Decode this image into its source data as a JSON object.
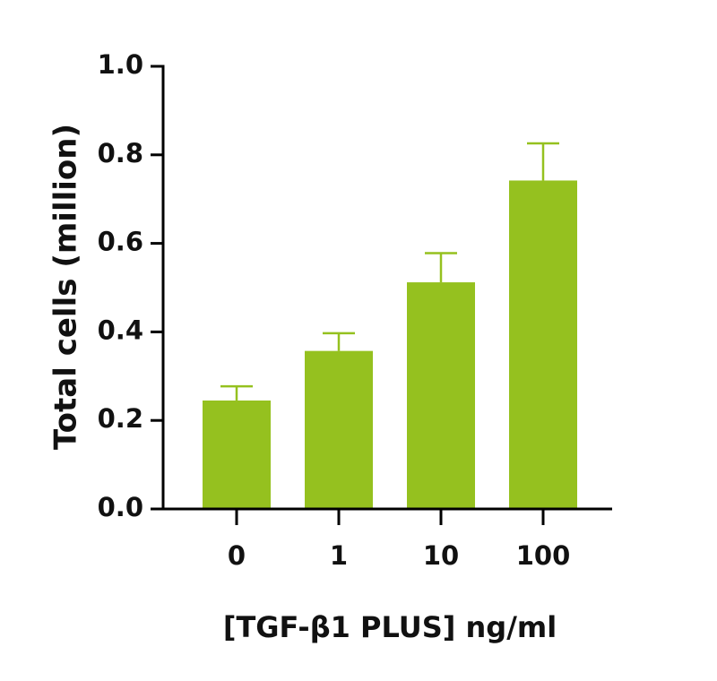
{
  "chart_data": {
    "type": "bar",
    "x_label": "[TGF-β1 PLUS] ng/ml",
    "y_label": "Total cells (million)",
    "categories": [
      "0",
      "1",
      "10",
      "100"
    ],
    "values": [
      0.245,
      0.357,
      0.512,
      0.742
    ],
    "errors": [
      0.032,
      0.04,
      0.066,
      0.084
    ],
    "color": "#95c11f",
    "ylim": [
      0,
      1.0
    ],
    "yticks": [
      {
        "value": 0,
        "label": "0.0"
      },
      {
        "value": 0.2,
        "label": "0.2"
      },
      {
        "value": 0.4,
        "label": "0.4"
      },
      {
        "value": 0.6,
        "label": "0.6"
      },
      {
        "value": 0.8,
        "label": "0.8"
      },
      {
        "value": 1.0,
        "label": "1.0"
      }
    ]
  }
}
